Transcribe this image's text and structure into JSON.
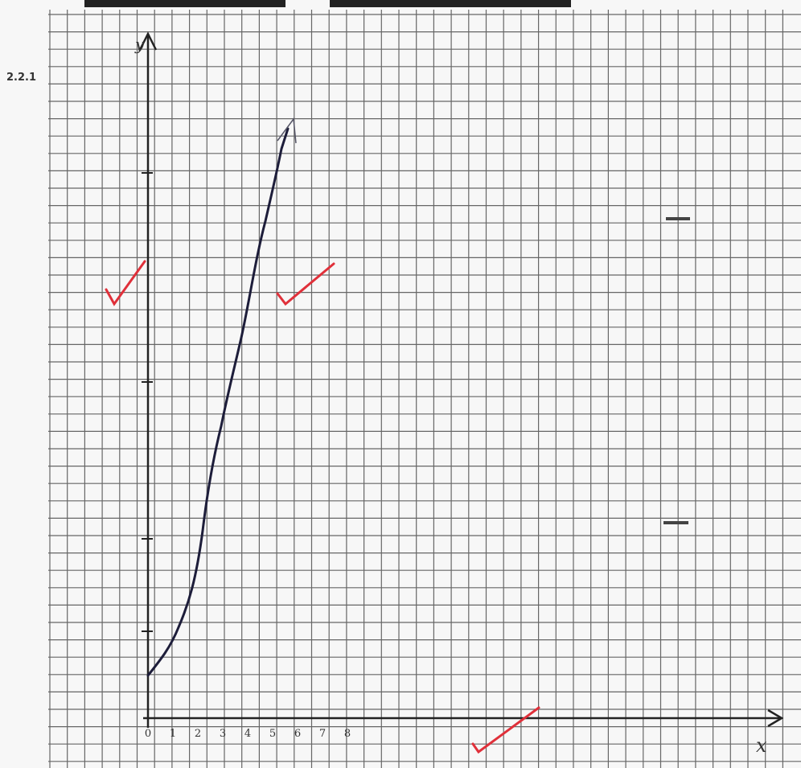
{
  "question_label": "2.2.1",
  "axes": {
    "y": "y",
    "x": "x"
  },
  "x_tick_labels": [
    "0",
    "1",
    "2",
    "3",
    "4",
    "5",
    "6",
    "7",
    "8"
  ]
}
